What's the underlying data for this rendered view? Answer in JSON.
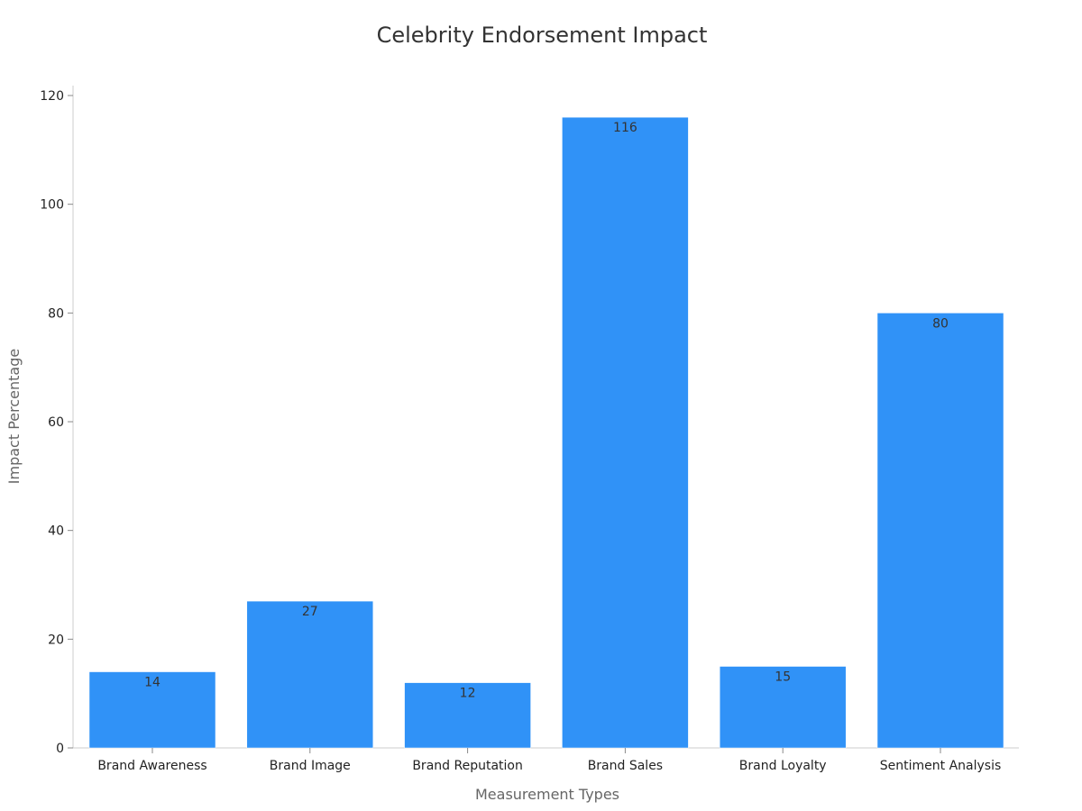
{
  "chart_data": {
    "type": "bar",
    "title": "Celebrity Endorsement Impact",
    "xlabel": "Measurement Types",
    "ylabel": "Impact Percentage",
    "categories": [
      "Brand Awareness",
      "Brand Image",
      "Brand Reputation",
      "Brand Sales",
      "Brand Loyalty",
      "Sentiment Analysis"
    ],
    "values": [
      14,
      27,
      12,
      116,
      15,
      80
    ],
    "ylim": [
      0,
      120
    ],
    "yticks": [
      0,
      20,
      40,
      60,
      80,
      100,
      120
    ],
    "grid": false,
    "bar_color": "#3092f7",
    "data_labels": true
  }
}
